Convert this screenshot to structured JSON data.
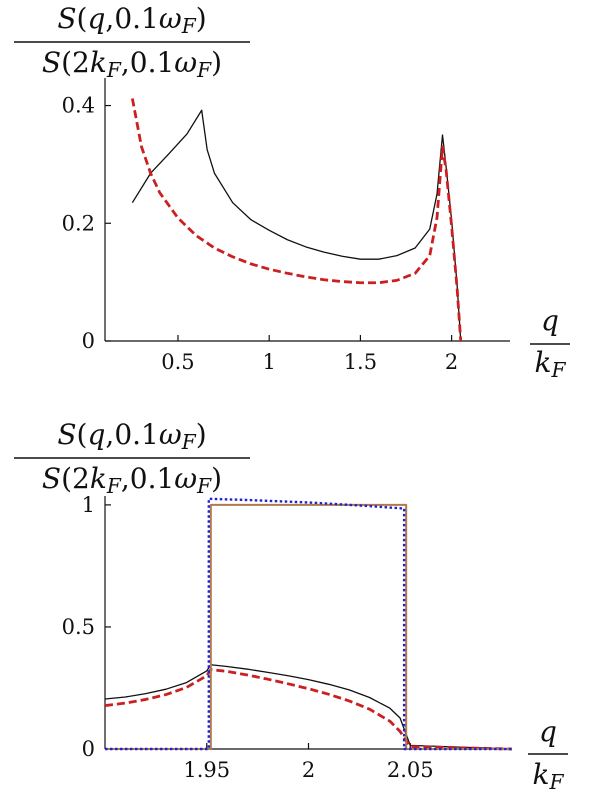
{
  "chart_data": [
    {
      "type": "line",
      "ylabel": {
        "numerator": "S(q,0.1ω_F)",
        "denominator": "S(2k_F,0.1ω_F)"
      },
      "xlabel": {
        "numerator": "q",
        "denominator": "k_F"
      },
      "xlim": [
        0.1,
        2.32
      ],
      "ylim": [
        0,
        0.44
      ],
      "xticks": [
        0.5,
        1,
        1.5,
        2
      ],
      "xtick_labels": [
        "0.5",
        "1",
        "1.5",
        "2"
      ],
      "yticks": [
        0,
        0.2,
        0.4
      ],
      "ytick_labels": [
        "0",
        "0.2",
        "0.4"
      ],
      "series": [
        {
          "color": "#111111",
          "style": "solid",
          "points": [
            [
              0.25,
              0.235
            ],
            [
              0.35,
              0.285
            ],
            [
              0.45,
              0.318
            ],
            [
              0.55,
              0.352
            ],
            [
              0.63,
              0.392
            ],
            [
              0.66,
              0.325
            ],
            [
              0.7,
              0.285
            ],
            [
              0.8,
              0.235
            ],
            [
              0.9,
              0.206
            ],
            [
              1.0,
              0.188
            ],
            [
              1.1,
              0.172
            ],
            [
              1.2,
              0.16
            ],
            [
              1.3,
              0.151
            ],
            [
              1.4,
              0.144
            ],
            [
              1.5,
              0.139
            ],
            [
              1.6,
              0.139
            ],
            [
              1.7,
              0.145
            ],
            [
              1.8,
              0.158
            ],
            [
              1.88,
              0.19
            ],
            [
              1.92,
              0.25
            ],
            [
              1.95,
              0.35
            ],
            [
              1.97,
              0.295
            ],
            [
              2.0,
              0.205
            ],
            [
              2.03,
              0.095
            ],
            [
              2.05,
              0.0
            ]
          ]
        },
        {
          "color": "#cc1f1f",
          "style": "dashed",
          "points": [
            [
              0.25,
              0.412
            ],
            [
              0.3,
              0.33
            ],
            [
              0.35,
              0.285
            ],
            [
              0.4,
              0.252
            ],
            [
              0.5,
              0.209
            ],
            [
              0.6,
              0.179
            ],
            [
              0.7,
              0.158
            ],
            [
              0.8,
              0.143
            ],
            [
              0.9,
              0.131
            ],
            [
              1.0,
              0.122
            ],
            [
              1.1,
              0.115
            ],
            [
              1.2,
              0.109
            ],
            [
              1.3,
              0.104
            ],
            [
              1.4,
              0.101
            ],
            [
              1.5,
              0.099
            ],
            [
              1.6,
              0.099
            ],
            [
              1.7,
              0.103
            ],
            [
              1.8,
              0.115
            ],
            [
              1.88,
              0.145
            ],
            [
              1.92,
              0.21
            ],
            [
              1.95,
              0.33
            ],
            [
              1.97,
              0.29
            ],
            [
              2.0,
              0.195
            ],
            [
              2.03,
              0.09
            ],
            [
              2.05,
              0.0
            ]
          ]
        }
      ]
    },
    {
      "type": "line",
      "ylabel": {
        "numerator": "S(q,0.1ω_F)",
        "denominator": "S(2k_F,0.1ω_F)"
      },
      "xlabel": {
        "numerator": "q",
        "denominator": "k_F"
      },
      "xlim": [
        1.9,
        2.1
      ],
      "ylim": [
        0,
        1.02
      ],
      "xticks": [
        1.95,
        2,
        2.05
      ],
      "xtick_labels": [
        "1.95",
        "2",
        "2.05"
      ],
      "yticks": [
        0,
        0.5,
        1
      ],
      "ytick_labels": [
        "0",
        "0.5",
        "1"
      ],
      "series": [
        {
          "color": "#111111",
          "style": "solid",
          "points": [
            [
              1.9,
              0.205
            ],
            [
              1.91,
              0.213
            ],
            [
              1.92,
              0.227
            ],
            [
              1.93,
              0.245
            ],
            [
              1.94,
              0.272
            ],
            [
              1.95,
              0.32
            ],
            [
              1.952,
              0.345
            ],
            [
              1.96,
              0.338
            ],
            [
              1.97,
              0.327
            ],
            [
              1.98,
              0.314
            ],
            [
              1.99,
              0.3
            ],
            [
              2.0,
              0.284
            ],
            [
              2.01,
              0.265
            ],
            [
              2.02,
              0.242
            ],
            [
              2.03,
              0.211
            ],
            [
              2.04,
              0.167
            ],
            [
              2.045,
              0.127
            ],
            [
              2.05,
              0.015
            ],
            [
              2.1,
              0.0
            ]
          ]
        },
        {
          "color": "#cc1f1f",
          "style": "dashed",
          "points": [
            [
              1.9,
              0.178
            ],
            [
              1.91,
              0.188
            ],
            [
              1.92,
              0.203
            ],
            [
              1.93,
              0.223
            ],
            [
              1.94,
              0.252
            ],
            [
              1.95,
              0.3
            ],
            [
              1.952,
              0.325
            ],
            [
              1.96,
              0.318
            ],
            [
              1.97,
              0.303
            ],
            [
              1.98,
              0.286
            ],
            [
              1.99,
              0.267
            ],
            [
              2.0,
              0.247
            ],
            [
              2.01,
              0.224
            ],
            [
              2.02,
              0.197
            ],
            [
              2.03,
              0.163
            ],
            [
              2.04,
              0.114
            ],
            [
              2.045,
              0.072
            ],
            [
              2.05,
              0.01
            ],
            [
              2.1,
              0.0
            ]
          ]
        },
        {
          "color": "#b07a4a",
          "style": "solid",
          "points": [
            [
              1.9,
              0.0
            ],
            [
              1.952,
              0.0
            ],
            [
              1.952,
              1.0
            ],
            [
              2.048,
              1.0
            ],
            [
              2.048,
              0.0
            ],
            [
              2.1,
              0.0
            ]
          ]
        },
        {
          "color": "#2222cc",
          "style": "dotted",
          "points": [
            [
              1.9,
              0.0
            ],
            [
              1.951,
              0.0
            ],
            [
              1.951,
              1.025
            ],
            [
              1.97,
              1.02
            ],
            [
              2.0,
              1.01
            ],
            [
              2.03,
              0.995
            ],
            [
              2.047,
              0.985
            ],
            [
              2.047,
              0.0
            ],
            [
              2.1,
              0.0
            ]
          ]
        }
      ]
    }
  ]
}
